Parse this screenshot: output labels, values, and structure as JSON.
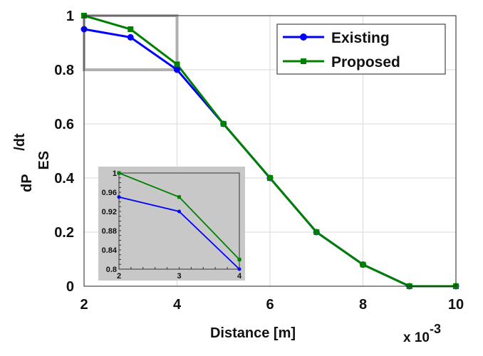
{
  "chart_data": {
    "type": "line",
    "xlabel": "Distance [m]",
    "x_multiplier": "x 10",
    "x_multiplier_exp": "-3",
    "ylabel_main": "dP",
    "ylabel_sub": "ES",
    "ylabel_sup": "/dt",
    "xlim": [
      2,
      10
    ],
    "ylim": [
      0,
      1
    ],
    "xticks": [
      "2",
      "4",
      "6",
      "8",
      "10"
    ],
    "yticks": [
      "0",
      "0.2",
      "0.4",
      "0.6",
      "0.8",
      "1"
    ],
    "grid": true,
    "legend_position": "top-right",
    "x": [
      2,
      3,
      4,
      5,
      6,
      7,
      8,
      9,
      10
    ],
    "series": [
      {
        "name": "Existing",
        "color": "#0000ff",
        "marker": "circle",
        "values": [
          0.95,
          0.92,
          0.8,
          0.6,
          0.4,
          0.2,
          0.08,
          0.0,
          0.0
        ]
      },
      {
        "name": "Proposed",
        "color": "#008000",
        "marker": "square",
        "values": [
          1.0,
          0.95,
          0.82,
          0.6,
          0.4,
          0.2,
          0.08,
          0.0,
          0.0
        ]
      }
    ],
    "zoom_region": {
      "x": [
        2,
        4
      ],
      "y": [
        0.8,
        1.0
      ]
    },
    "inset": {
      "xlim": [
        2,
        4
      ],
      "ylim": [
        0.8,
        1.0
      ],
      "xticks": [
        "2",
        "3",
        "4"
      ],
      "yticks": [
        "0.8",
        "0.84",
        "0.88",
        "0.92",
        "0.96",
        "1"
      ],
      "background": "#c8c8c8"
    }
  }
}
